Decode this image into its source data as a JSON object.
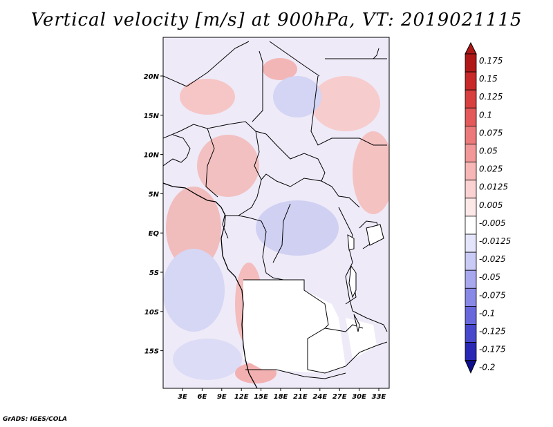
{
  "title": "Vertical velocity [m/s] at 900hPa, VT: 2019021115",
  "footer": "GrADS: IGES/COLA",
  "lon_labels": [
    "3E",
    "6E",
    "9E",
    "12E",
    "15E",
    "18E",
    "21E",
    "24E",
    "27E",
    "30E",
    "33E"
  ],
  "lat_labels": [
    "20N",
    "15N",
    "10N",
    "5N",
    "EQ",
    "5S",
    "10S",
    "15S"
  ],
  "colorbar": {
    "labels": [
      "0.175",
      "0.15",
      "0.125",
      "0.1",
      "0.075",
      "0.05",
      "0.025",
      "0.0125",
      "0.005",
      "-0.005",
      "-0.0125",
      "-0.025",
      "-0.05",
      "-0.075",
      "-0.1",
      "-0.125",
      "-0.175",
      "-0.2"
    ],
    "colors": [
      "#b01818",
      "#c82828",
      "#d84040",
      "#e45a5a",
      "#ec7a7a",
      "#f29898",
      "#f7b7b7",
      "#fbd2d2",
      "#fde8e8",
      "#ffffff",
      "#e4e4fb",
      "#cacaf6",
      "#a8a8ef",
      "#8888e6",
      "#6868dc",
      "#4848cc",
      "#2828b4",
      "#0e0e90"
    ]
  }
}
